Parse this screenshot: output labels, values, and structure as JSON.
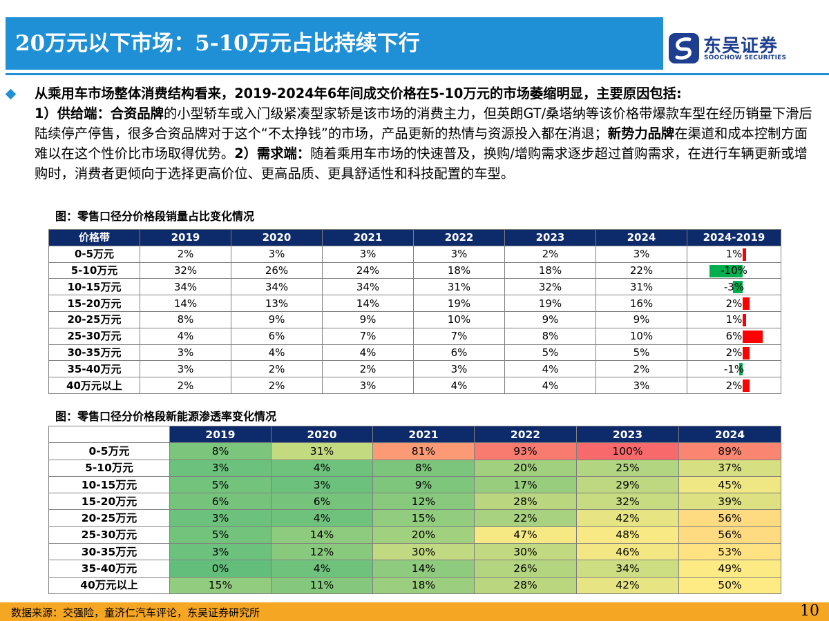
{
  "header": {
    "title": "20万元以下市场：5-10万元占比持续下行",
    "logo_cn": "东吴证券",
    "logo_en": "SOOCHOW SECURITIES"
  },
  "body": {
    "p_lead": "从乘用车市场整体消费结构看来，2019-2024年6年间成交价格在5-10万元的市场萎缩明显，主要原因包括:",
    "p_s1": "1）供给端：",
    "p_b1": "合资品牌",
    "p_t1": "的小型轿车或入门级紧凑型家轿是该市场的消费主力，但英朗GT/桑塔纳等该价格带爆款车型在经历销量下滑后陆续停产停售，很多合资品牌对于这个“不太挣钱”的市场，产品更新的热情与资源投入都在消退；",
    "p_b2": "新势力品牌",
    "p_t2": "在渠道和成本控制方面难以在这个性价比市场取得优势。",
    "p_s2": "2）需求端：",
    "p_t3": "随着乘用车市场的快速普及，换购/增购需求逐步超过首购需求，在进行车辆更新或增购时，消费者更倾向于选择更高价位、更高品质、更具舒适性和科技配置的车型。"
  },
  "table1": {
    "caption": "图：零售口径分价格段销量占比变化情况",
    "headers": [
      "价格带",
      "2019",
      "2020",
      "2021",
      "2022",
      "2023",
      "2024",
      "2024-2019"
    ],
    "rows": [
      {
        "band": "0-5万元",
        "cells": [
          "2%",
          "3%",
          "3%",
          "3%",
          "2%",
          "3%"
        ],
        "diff": "1%",
        "diff_value": 1
      },
      {
        "band": "5-10万元",
        "cells": [
          "32%",
          "26%",
          "24%",
          "18%",
          "18%",
          "22%"
        ],
        "diff": "-10%",
        "diff_value": -10
      },
      {
        "band": "10-15万元",
        "cells": [
          "34%",
          "34%",
          "34%",
          "31%",
          "32%",
          "31%"
        ],
        "diff": "-3%",
        "diff_value": -3
      },
      {
        "band": "15-20万元",
        "cells": [
          "14%",
          "13%",
          "14%",
          "19%",
          "19%",
          "16%"
        ],
        "diff": "2%",
        "diff_value": 2
      },
      {
        "band": "20-25万元",
        "cells": [
          "8%",
          "9%",
          "9%",
          "10%",
          "9%",
          "9%"
        ],
        "diff": "1%",
        "diff_value": 1
      },
      {
        "band": "25-30万元",
        "cells": [
          "4%",
          "6%",
          "7%",
          "7%",
          "8%",
          "10%"
        ],
        "diff": "6%",
        "diff_value": 6
      },
      {
        "band": "30-35万元",
        "cells": [
          "3%",
          "4%",
          "4%",
          "6%",
          "5%",
          "5%"
        ],
        "diff": "2%",
        "diff_value": 2
      },
      {
        "band": "35-40万元",
        "cells": [
          "3%",
          "2%",
          "2%",
          "3%",
          "4%",
          "2%"
        ],
        "diff": "-1%",
        "diff_value": -1
      },
      {
        "band": "40万元以上",
        "cells": [
          "2%",
          "2%",
          "3%",
          "4%",
          "4%",
          "3%"
        ],
        "diff": "2%",
        "diff_value": 2
      }
    ],
    "positive_color": "#ff0000",
    "negative_color": "#00b050"
  },
  "table2": {
    "caption": "图：零售口径分价格段新能源渗透率变化情况",
    "headers": [
      "",
      "2019",
      "2020",
      "2021",
      "2022",
      "2023",
      "2024"
    ],
    "rows": [
      {
        "band": "0-5万元",
        "cells": [
          "8%",
          "31%",
          "81%",
          "93%",
          "100%",
          "89%"
        ],
        "values": [
          8,
          31,
          81,
          93,
          100,
          89
        ]
      },
      {
        "band": "5-10万元",
        "cells": [
          "3%",
          "4%",
          "8%",
          "20%",
          "25%",
          "37%"
        ],
        "values": [
          3,
          4,
          8,
          20,
          25,
          37
        ]
      },
      {
        "band": "10-15万元",
        "cells": [
          "5%",
          "3%",
          "9%",
          "17%",
          "29%",
          "45%"
        ],
        "values": [
          5,
          3,
          9,
          17,
          29,
          45
        ]
      },
      {
        "band": "15-20万元",
        "cells": [
          "6%",
          "6%",
          "12%",
          "28%",
          "32%",
          "39%"
        ],
        "values": [
          6,
          6,
          12,
          28,
          32,
          39
        ]
      },
      {
        "band": "20-25万元",
        "cells": [
          "3%",
          "4%",
          "15%",
          "22%",
          "42%",
          "56%"
        ],
        "values": [
          3,
          4,
          15,
          22,
          42,
          56
        ]
      },
      {
        "band": "25-30万元",
        "cells": [
          "5%",
          "14%",
          "20%",
          "47%",
          "48%",
          "56%"
        ],
        "values": [
          5,
          14,
          20,
          47,
          48,
          56
        ]
      },
      {
        "band": "30-35万元",
        "cells": [
          "3%",
          "12%",
          "30%",
          "30%",
          "46%",
          "53%"
        ],
        "values": [
          3,
          12,
          30,
          30,
          46,
          53
        ]
      },
      {
        "band": "35-40万元",
        "cells": [
          "0%",
          "4%",
          "14%",
          "26%",
          "34%",
          "49%"
        ],
        "values": [
          0,
          4,
          14,
          26,
          34,
          49
        ]
      },
      {
        "band": "40万元以上",
        "cells": [
          "15%",
          "11%",
          "18%",
          "28%",
          "42%",
          "50%"
        ],
        "values": [
          15,
          11,
          18,
          28,
          42,
          50
        ]
      }
    ],
    "heat_low_color": "#63be7b",
    "heat_mid_color": "#ffeb84",
    "heat_high_color": "#f8696b"
  },
  "footer": {
    "source": "数据来源：交强险，童济仁汽车评论，东吴证券研究所",
    "page": "10"
  },
  "colors": {
    "brand_blue": "#1f8fd6",
    "header_navy": "#0d2a6b",
    "footer_orange": "#f5a623"
  }
}
